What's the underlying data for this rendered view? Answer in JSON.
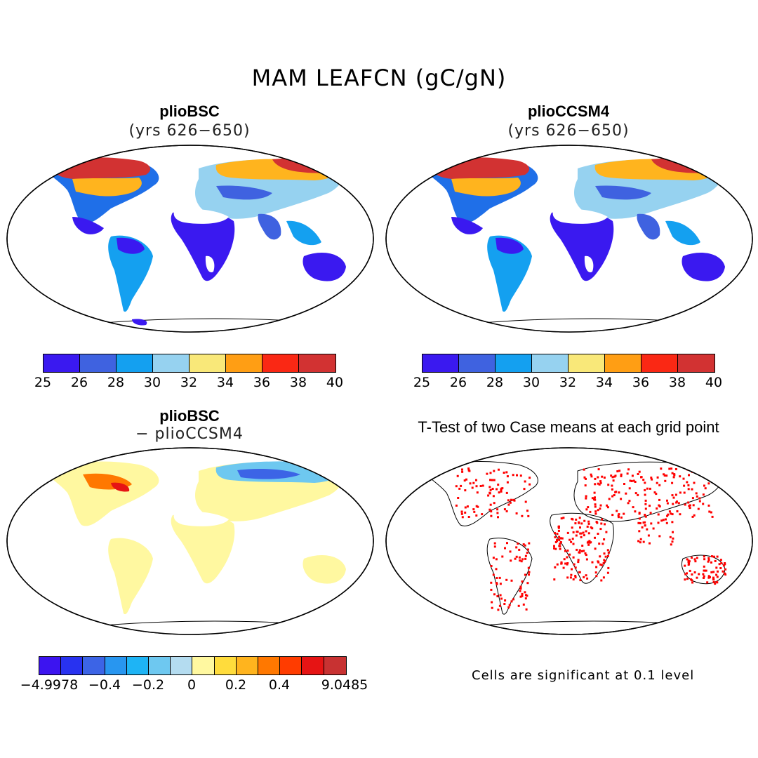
{
  "figure": {
    "title": "MAM LEAFCN (gC/gN)"
  },
  "panels": [
    {
      "title": "plioBSC",
      "subtitle": "(yrs 626−650)"
    },
    {
      "title": "plioCCSM4",
      "subtitle": "(yrs 626−650)"
    },
    {
      "title": "plioBSC",
      "subtitle": "− plioCCSM4"
    },
    {
      "title": "T-Test of two Case means at each grid point",
      "subtitle": ""
    }
  ],
  "colorbar_main": {
    "colors": [
      "#3a19f0",
      "#3f62e0",
      "#14a0f0",
      "#96d2f0",
      "#f9e879",
      "#ff9e14",
      "#fa2814",
      "#d23232"
    ],
    "labels": [
      "25",
      "26",
      "28",
      "30",
      "32",
      "34",
      "36",
      "38",
      "40"
    ]
  },
  "colorbar_diff": {
    "colors": [
      "#3c14f0",
      "#2832f0",
      "#3c64e6",
      "#2896f0",
      "#1eb4f5",
      "#6ec8f0",
      "#b4dcf0",
      "#fff8a0",
      "#ffdc3c",
      "#ffb41e",
      "#ff7800",
      "#ff3c00",
      "#e61414",
      "#c83232"
    ],
    "labels": [
      "−4.9978",
      "−0.4",
      "−0.2",
      "0",
      "0.2",
      "0.4",
      "9.0485"
    ]
  },
  "note": "Cells are significant at 0.1 level"
}
